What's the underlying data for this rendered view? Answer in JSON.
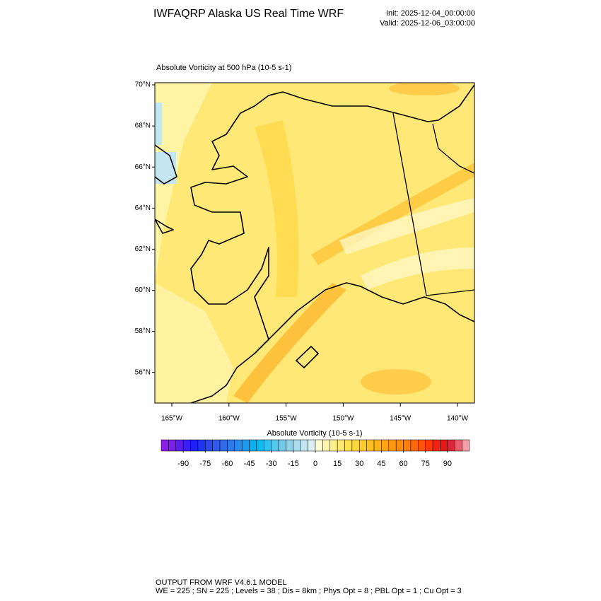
{
  "header": {
    "title": "IWFAQRP Alaska US Real Time WRF",
    "init": "Init: 2025-12-04_00:00:00",
    "valid": "Valid: 2025-12-06_03:00:00"
  },
  "map": {
    "title": "Absolute Vorticity at 500 hPa   (10-5 s-1)",
    "lat_labels": [
      "70°N",
      "68°N",
      "66°N",
      "64°N",
      "62°N",
      "60°N",
      "58°N",
      "56°N"
    ],
    "lon_labels": [
      "165°W",
      "160°W",
      "155°W",
      "150°W",
      "145°W",
      "140°W"
    ]
  },
  "colorbar": {
    "title": "Absolute Vorticity  (10-5 s-1)",
    "range": [
      -105,
      105
    ],
    "ticks": [
      -90,
      -75,
      -60,
      -45,
      -30,
      -15,
      0,
      15,
      30,
      45,
      60,
      75,
      90
    ],
    "colors": [
      "#8a1ee6",
      "#7a1fe8",
      "#5a1ff0",
      "#3a1ff5",
      "#1f1ff7",
      "#1f34f2",
      "#2a48ee",
      "#2f5aea",
      "#306ae6",
      "#2f7ae8",
      "#2a8aec",
      "#1a9cf0",
      "#0aaff2",
      "#10bbf2",
      "#2ec3f0",
      "#55c8ee",
      "#72cbeb",
      "#8ed3ea",
      "#a9dcec",
      "#c4e6f0",
      "#dceff6",
      "#fffbd0",
      "#fff5a8",
      "#fff08a",
      "#ffe870",
      "#ffe050",
      "#ffd63a",
      "#ffcb28",
      "#ffbf20",
      "#ffb31a",
      "#ffa515",
      "#ff9810",
      "#ff8a0c",
      "#ff7a08",
      "#ff6a06",
      "#ff5504",
      "#ff3a02",
      "#f82010",
      "#e81818",
      "#d8283a",
      "#e86070",
      "#f4a0a8"
    ]
  },
  "footer": {
    "line1": "OUTPUT FROM WRF V4.6.1 MODEL",
    "line2": "WE = 225 ; SN = 225 ; Levels = 38 ; Dis = 8km ; Phys Opt = 8 ; PBL Opt = 1 ; Cu Opt = 3"
  }
}
